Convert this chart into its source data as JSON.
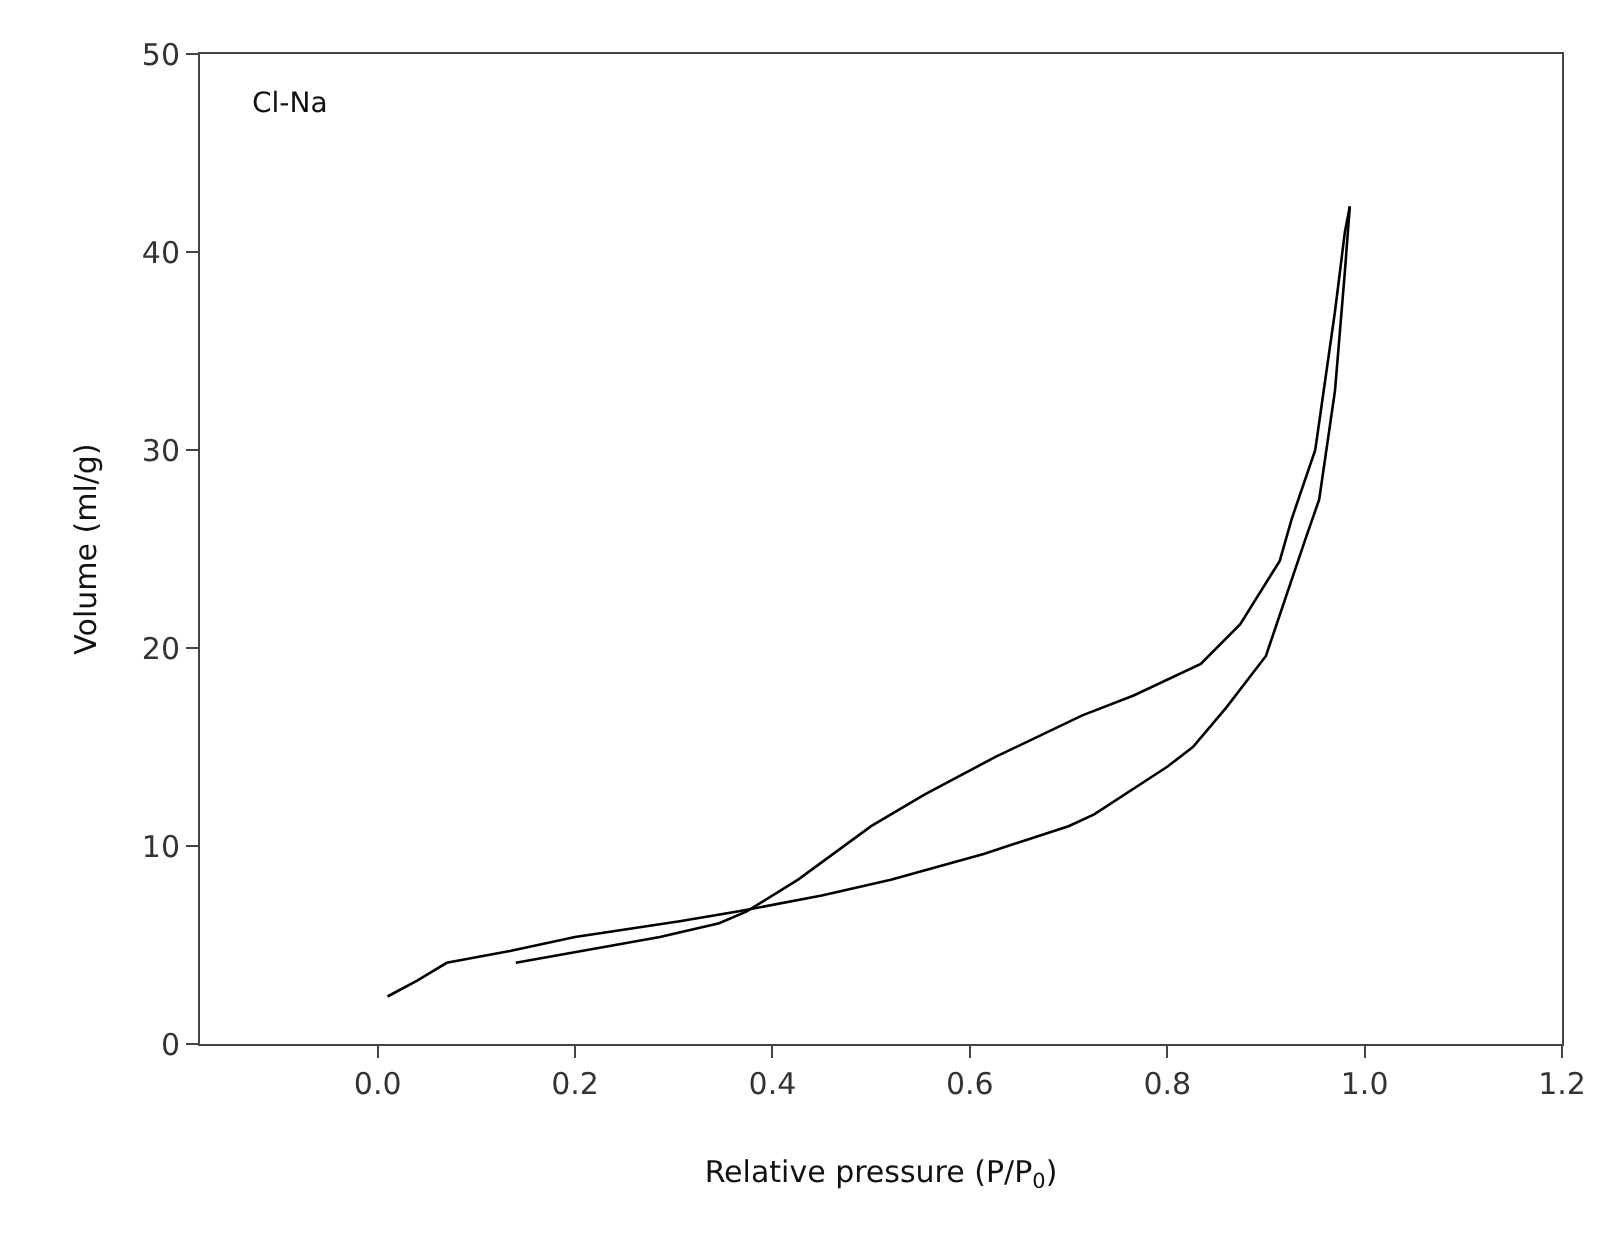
{
  "chart_data": {
    "type": "line",
    "xlabel": "Relative pressure (P/P$_{0}$)",
    "ylabel": "Volume (ml/g)",
    "annotations": [
      "Cl-Na"
    ],
    "xlim": [
      -0.18,
      1.2
    ],
    "xticks": [
      {
        "value": 0,
        "label": "0.0"
      },
      0.2,
      0.4,
      0.6,
      0.8,
      {
        "value": 1,
        "label": "1.0"
      },
      1.2
    ],
    "ylim": [
      0,
      50
    ],
    "yticks": [
      0,
      10,
      20,
      30,
      40,
      50
    ],
    "marker": "none",
    "line_style": "solid",
    "series": [
      {
        "color": "#000000",
        "x": [
          0.01,
          0.04,
          0.07,
          0.134,
          0.2,
          0.306,
          0.366,
          0.45,
          0.52,
          0.614,
          0.7,
          0.726,
          0.8,
          0.826,
          0.86,
          0.9,
          0.94,
          0.954,
          0.97,
          0.98,
          0.985
        ],
        "values": [
          2.4,
          3.2,
          4.1,
          4.7,
          5.4,
          6.2,
          6.7,
          7.5,
          8.3,
          9.6,
          11.0,
          11.6,
          14.0,
          15.0,
          17.0,
          19.6,
          25.5,
          27.5,
          33,
          39,
          42.3
        ]
      },
      {
        "color": "#000000",
        "x": [
          0.14,
          0.286,
          0.346,
          0.374,
          0.426,
          0.5,
          0.554,
          0.626,
          0.714,
          0.766,
          0.834,
          0.874,
          0.914,
          0.926,
          0.95,
          0.97,
          0.98,
          0.985
        ],
        "values": [
          4.1,
          5.4,
          6.1,
          6.7,
          8.3,
          11.0,
          12.6,
          14.5,
          16.6,
          17.6,
          19.2,
          21.2,
          24.4,
          26.5,
          30,
          37,
          41,
          42.3
        ]
      }
    ]
  }
}
